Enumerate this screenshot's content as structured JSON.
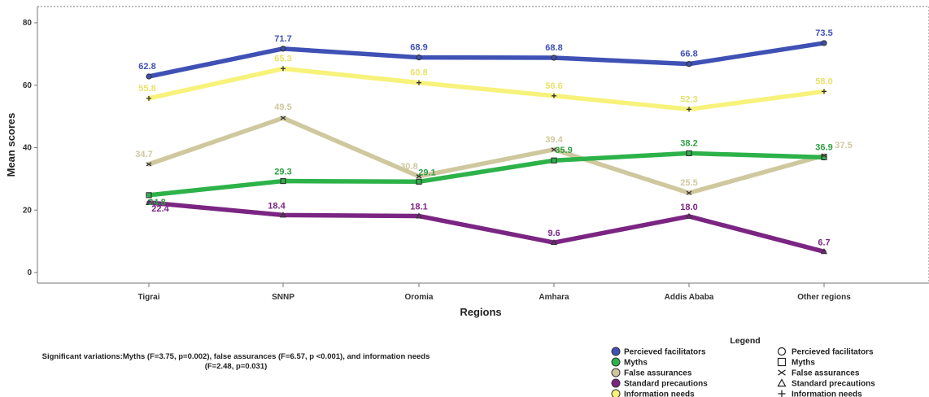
{
  "chart_data": {
    "type": "line",
    "xlabel": "Regions",
    "ylabel": "Mean scores",
    "ylim": [
      0,
      80
    ],
    "yticks": [
      0,
      20,
      40,
      60,
      80
    ],
    "grid": false,
    "legend_placement": "bottom-right",
    "categories": [
      "Tigrai",
      "SNNP",
      "Oromia",
      "Amhara",
      "Addis Ababa",
      "Other regions"
    ],
    "series": [
      {
        "name": "Percieved facilitators",
        "color": "#3f51b5",
        "marker": "circle",
        "values": [
          62.8,
          71.7,
          68.9,
          68.8,
          66.8,
          73.5
        ],
        "labels": [
          "62.8",
          "71.7",
          "68.9",
          "68.8",
          "66.8",
          "73.5"
        ]
      },
      {
        "name": "Myths",
        "color": "#2db24a",
        "marker": "square",
        "values": [
          24.8,
          29.3,
          29.1,
          35.9,
          38.2,
          36.9
        ],
        "labels": [
          "24.8",
          "29.3",
          "29.1",
          "35.9",
          "38.2",
          "36.9"
        ]
      },
      {
        "name": "False assurances",
        "color": "#cfc89e",
        "marker": "cross",
        "values": [
          34.7,
          49.5,
          30.8,
          39.4,
          25.5,
          37.5
        ],
        "labels": [
          "34.7",
          "49.5",
          "30.8",
          "39.4",
          "25.5",
          "37.5"
        ]
      },
      {
        "name": "Standard precautions",
        "color": "#7b2583",
        "marker": "triangle",
        "values": [
          22.4,
          18.4,
          18.1,
          9.6,
          18.0,
          6.7
        ],
        "labels": [
          "22.4",
          "18.4",
          "18.1",
          "9.6",
          "18.0",
          "6.7"
        ]
      },
      {
        "name": "Information needs",
        "color": "#f7f27a",
        "marker": "plus",
        "values": [
          55.8,
          65.3,
          60.8,
          56.6,
          52.3,
          58.0
        ],
        "labels": [
          "55.8",
          "65.3",
          "60.8",
          "56.6",
          "52.3",
          "58.0"
        ]
      }
    ],
    "legend_title": "Legend",
    "note": "Significant variations:Myths (F=3.75, p=0.002), false assurances (F=6.57, p <0.001), and information needs (F=2.48, p=0.031)"
  }
}
